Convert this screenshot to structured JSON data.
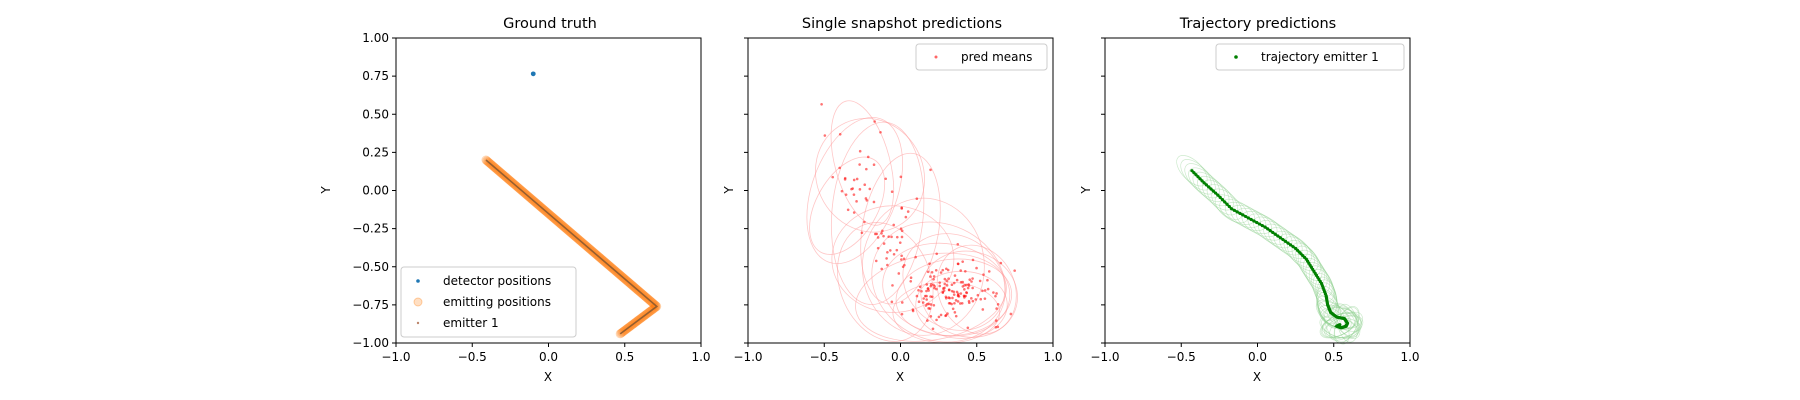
{
  "chart_data": [
    {
      "type": "scatter",
      "title": "Ground truth",
      "xlabel": "X",
      "ylabel": "Y",
      "xlim": [
        -1,
        1
      ],
      "ylim": [
        -1,
        1
      ],
      "xticks": [
        "−1.0",
        "−0.5",
        "0.0",
        "0.5",
        "1.0"
      ],
      "yticks": [
        "1.00",
        "0.75",
        "0.50",
        "0.25",
        "0.00",
        "−0.25",
        "−0.50",
        "−0.75",
        "−1.00"
      ],
      "legend_position": "lower-left",
      "grid": false,
      "series": [
        {
          "name": "detector positions",
          "color": "#1f77b4",
          "x": [
            -0.1
          ],
          "y": [
            0.765
          ]
        },
        {
          "name": "emitting positions",
          "color": "#ff7f0e",
          "path": [
            [
              -0.41,
              0.2
            ],
            [
              0.71,
              -0.76
            ],
            [
              0.47,
              -0.94
            ]
          ]
        },
        {
          "name": "emitter 1",
          "color": "#a0522d",
          "path": [
            [
              -0.41,
              0.2
            ],
            [
              0.71,
              -0.76
            ],
            [
              0.47,
              -0.94
            ]
          ]
        }
      ]
    },
    {
      "type": "scatter",
      "title": "Single snapshot predictions",
      "xlim": [
        -1,
        1
      ],
      "ylim": [
        -1,
        1
      ],
      "ylabel": "Y",
      "xlabel": "X",
      "xticks": [
        "−1.0",
        "−0.5",
        "0.0",
        "0.5",
        "1.0"
      ],
      "legend_position": "top-right",
      "grid": false,
      "series": [
        {
          "name": "pred means",
          "color": "#ff0000",
          "clusters": [
            {
              "cx": -0.27,
              "cy": 0.07,
              "sx": 0.12,
              "sy": 0.17,
              "n": 35
            },
            {
              "cx": -0.05,
              "cy": -0.32,
              "sx": 0.09,
              "sy": 0.12,
              "n": 35
            },
            {
              "cx": 0.33,
              "cy": -0.66,
              "sx": 0.17,
              "sy": 0.1,
              "n": 160
            }
          ]
        },
        {
          "name": "uncertainty ellipses",
          "color": "#ff9999",
          "ellipses": [
            {
              "cx": -0.25,
              "cy": 0.18,
              "rx": 0.18,
              "ry": 0.42,
              "rot": -15
            },
            {
              "cx": -0.3,
              "cy": 0.0,
              "rx": 0.28,
              "ry": 0.5,
              "rot": 20
            },
            {
              "cx": -0.15,
              "cy": -0.15,
              "rx": 0.3,
              "ry": 0.6,
              "rot": 5
            },
            {
              "cx": -0.2,
              "cy": 0.1,
              "rx": 0.35,
              "ry": 0.38,
              "rot": -30
            },
            {
              "cx": 0.0,
              "cy": -0.25,
              "rx": 0.25,
              "ry": 0.5,
              "rot": 10
            },
            {
              "cx": -0.05,
              "cy": -0.45,
              "rx": 0.4,
              "ry": 0.35,
              "rot": 0
            },
            {
              "cx": 0.3,
              "cy": -0.65,
              "rx": 0.42,
              "ry": 0.3,
              "rot": 10
            },
            {
              "cx": 0.35,
              "cy": -0.7,
              "rx": 0.38,
              "ry": 0.25,
              "rot": -5
            },
            {
              "cx": 0.25,
              "cy": -0.6,
              "rx": 0.45,
              "ry": 0.38,
              "rot": 25
            },
            {
              "cx": 0.4,
              "cy": -0.75,
              "rx": 0.3,
              "ry": 0.22,
              "rot": 0
            },
            {
              "cx": 0.2,
              "cy": -0.7,
              "rx": 0.5,
              "ry": 0.28,
              "rot": -10
            },
            {
              "cx": 0.35,
              "cy": -0.6,
              "rx": 0.35,
              "ry": 0.3,
              "rot": 35
            },
            {
              "cx": 0.45,
              "cy": -0.68,
              "rx": 0.32,
              "ry": 0.28,
              "rot": 15
            },
            {
              "cx": -0.1,
              "cy": -0.6,
              "rx": 0.3,
              "ry": 0.4,
              "rot": -20
            },
            {
              "cx": 0.15,
              "cy": -0.5,
              "rx": 0.4,
              "ry": 0.45,
              "rot": 0
            },
            {
              "cx": -0.35,
              "cy": -0.1,
              "rx": 0.2,
              "ry": 0.35,
              "rot": 30
            },
            {
              "cx": 0.3,
              "cy": -0.8,
              "rx": 0.35,
              "ry": 0.2,
              "rot": 0
            },
            {
              "cx": 0.5,
              "cy": -0.65,
              "rx": 0.25,
              "ry": 0.3,
              "rot": -25
            }
          ]
        }
      ]
    },
    {
      "type": "line",
      "title": "Trajectory predictions",
      "xlim": [
        -1,
        1
      ],
      "ylim": [
        -1,
        1
      ],
      "ylabel": "Y",
      "xlabel": "X",
      "xticks": [
        "−1.0",
        "−0.5",
        "0.0",
        "0.5",
        "1.0"
      ],
      "legend_position": "top-right",
      "grid": false,
      "series": [
        {
          "name": "trajectory emitter 1",
          "color": "#008000",
          "x": [
            -0.43,
            -0.35,
            -0.26,
            -0.17,
            -0.06,
            0.05,
            0.15,
            0.25,
            0.32,
            0.37,
            0.42,
            0.45,
            0.46,
            0.48,
            0.52,
            0.57,
            0.59,
            0.58,
            0.55,
            0.52,
            0.54
          ],
          "y": [
            0.13,
            0.05,
            -0.03,
            -0.12,
            -0.18,
            -0.24,
            -0.31,
            -0.38,
            -0.45,
            -0.53,
            -0.61,
            -0.69,
            -0.75,
            -0.8,
            -0.83,
            -0.84,
            -0.87,
            -0.89,
            -0.9,
            -0.89,
            -0.88
          ]
        },
        {
          "name": "trajectory ellipses",
          "color": "#90d090",
          "ellipse_rx": 0.09,
          "ellipse_ry": 0.05
        }
      ]
    }
  ]
}
